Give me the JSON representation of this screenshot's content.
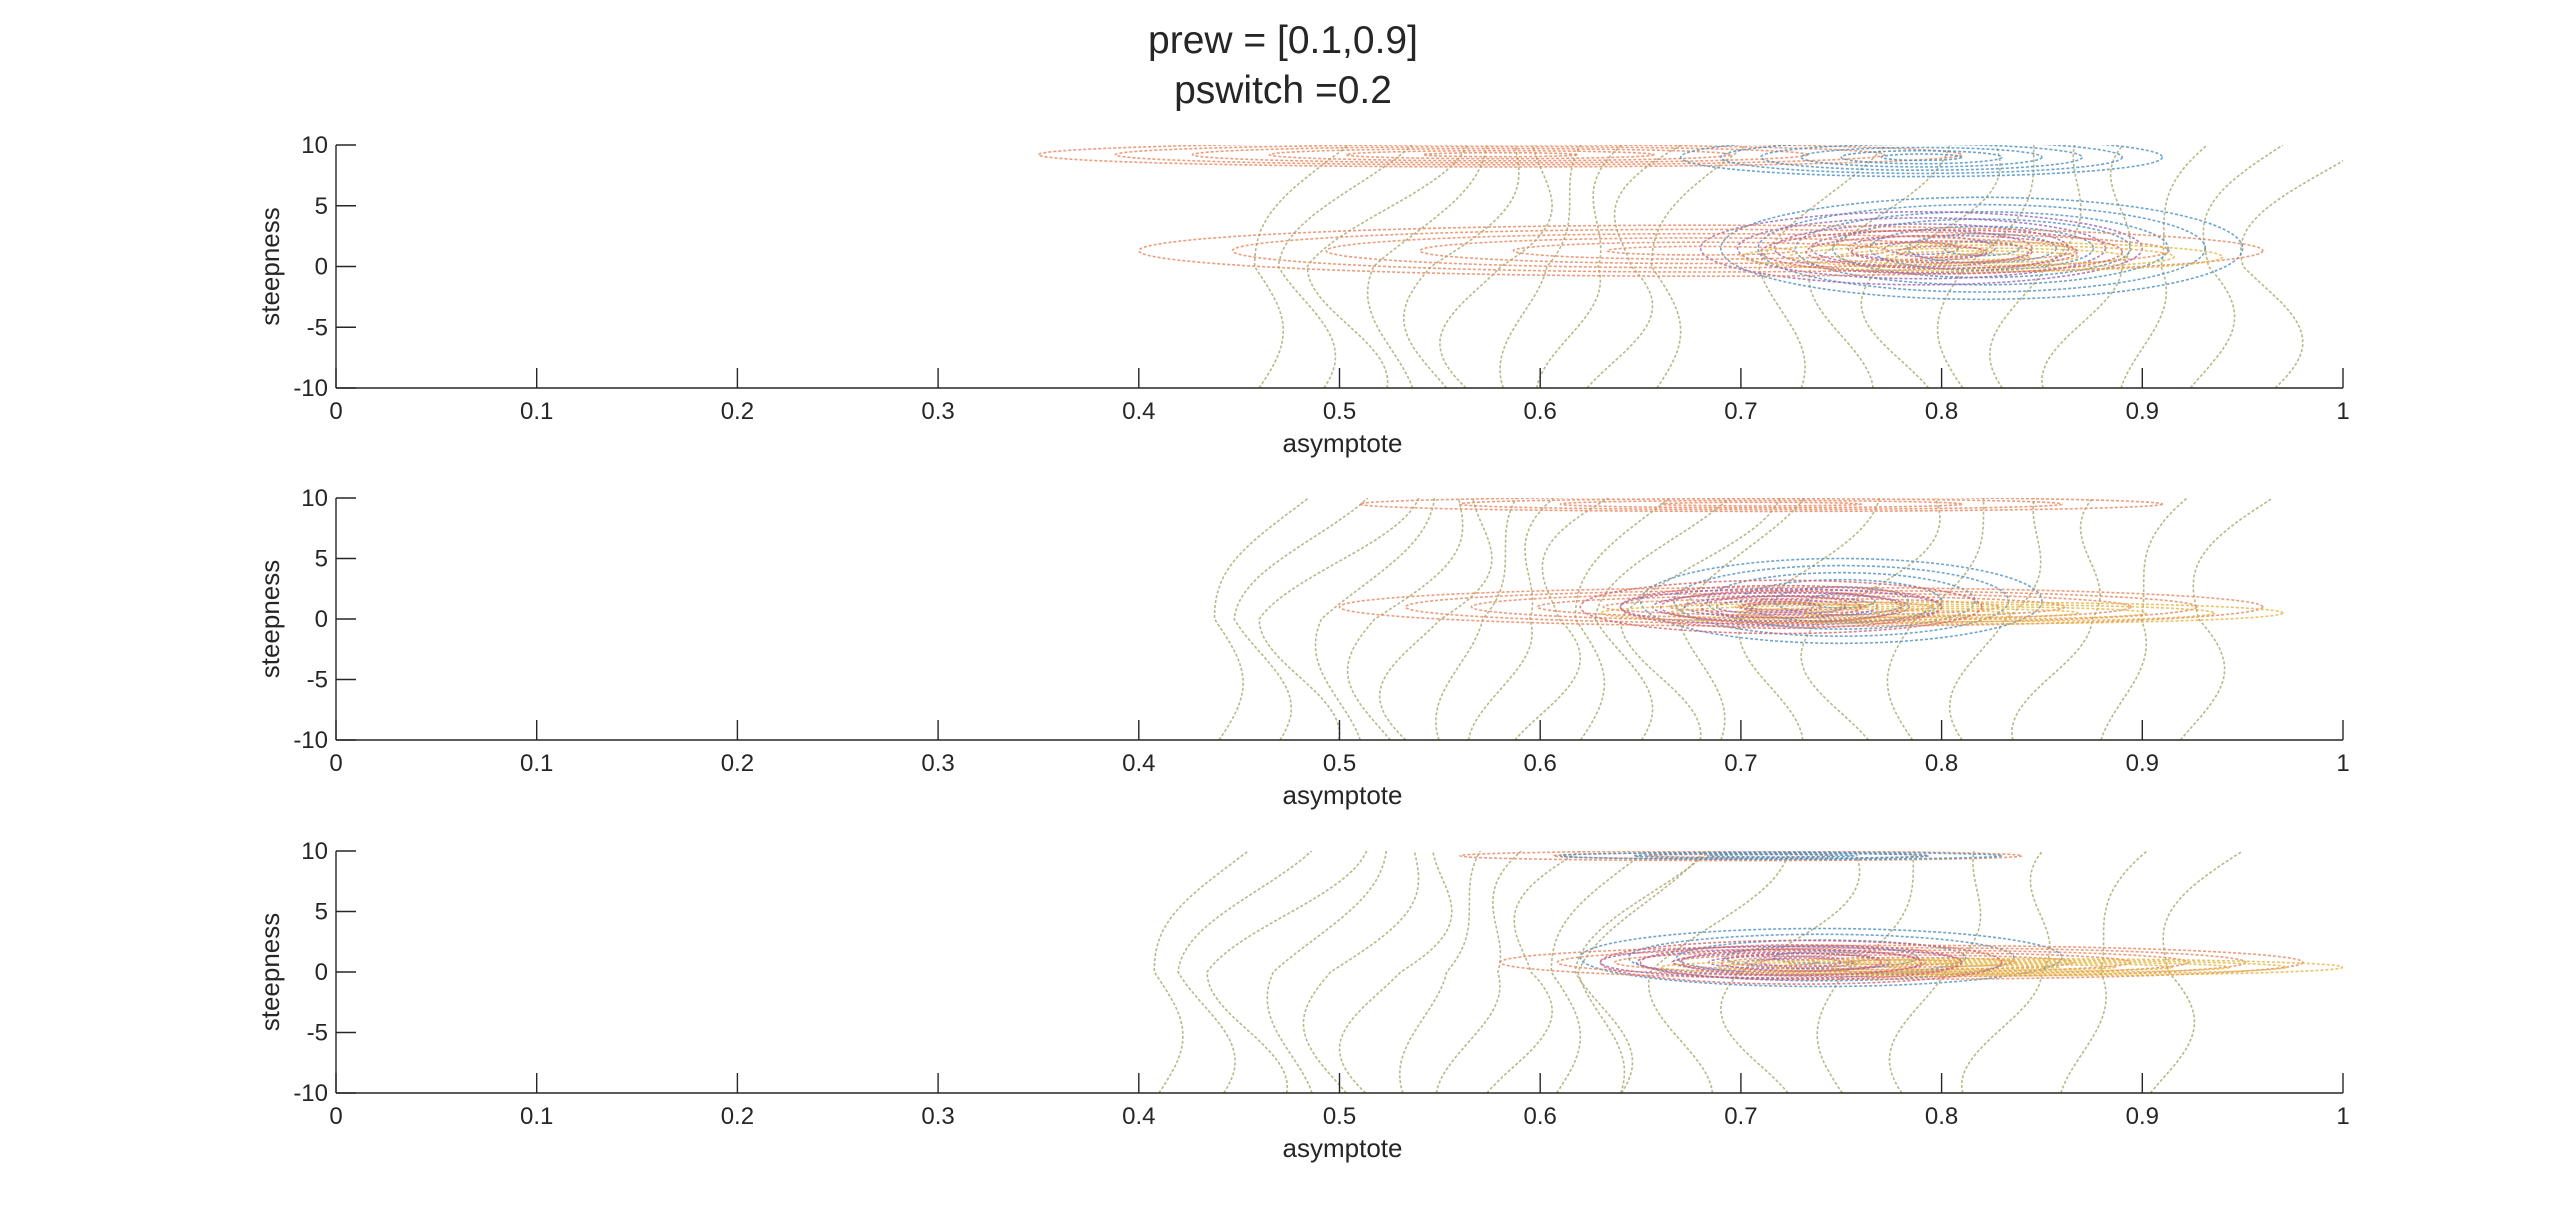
{
  "figure": {
    "title_line1": "prew = [0.1,0.9]",
    "title_line2": "pswitch =0.2"
  },
  "colors": {
    "orange": "#e8845b",
    "olive": "#a7a66b",
    "blue": "#4a8ec2",
    "purple": "#9b62b3",
    "yellow": "#e5b53e",
    "red": "#d95f6c"
  },
  "chart_data": [
    {
      "type": "contour",
      "xlabel": "asymptote",
      "ylabel": "steepness",
      "xlim": [
        0,
        1
      ],
      "ylim": [
        -10,
        10
      ],
      "xticks": [
        "0",
        "0.1",
        "0.2",
        "0.3",
        "0.4",
        "0.5",
        "0.6",
        "0.7",
        "0.8",
        "0.9",
        "1"
      ],
      "yticks": [
        "10",
        "5",
        "0",
        "-5",
        "-10"
      ],
      "grid": false,
      "ellipses": [
        {
          "cx": 0.58,
          "cy": 9.2,
          "rx": 0.23,
          "ry": 1.0,
          "levels": 6,
          "color": "orange"
        },
        {
          "cx": 0.79,
          "cy": 9.0,
          "rx": 0.12,
          "ry": 1.6,
          "levels": 6,
          "color": "blue"
        },
        {
          "cx": 0.82,
          "cy": 1.5,
          "rx": 0.13,
          "ry": 4.2,
          "levels": 7,
          "color": "blue"
        },
        {
          "cx": 0.79,
          "cy": 1.5,
          "rx": 0.11,
          "ry": 3.0,
          "levels": 6,
          "color": "purple"
        },
        {
          "cx": 0.68,
          "cy": 1.3,
          "rx": 0.28,
          "ry": 2.1,
          "levels": 6,
          "color": "orange"
        },
        {
          "cx": 0.82,
          "cy": 0.8,
          "rx": 0.12,
          "ry": 1.2,
          "levels": 5,
          "color": "yellow"
        },
        {
          "cx": 0.8,
          "cy": 1.2,
          "rx": 0.09,
          "ry": 1.8,
          "levels": 4,
          "color": "red"
        }
      ],
      "background_contours": [
        {
          "x0": 0.46,
          "spacing": 0.022,
          "count": 10,
          "color": "olive"
        },
        {
          "x0": 0.72,
          "spacing": 0.03,
          "count": 9,
          "color": "olive"
        }
      ]
    },
    {
      "type": "contour",
      "xlabel": "asymptote",
      "ylabel": "steepness",
      "xlim": [
        0,
        1
      ],
      "ylim": [
        -10,
        10
      ],
      "xticks": [
        "0",
        "0.1",
        "0.2",
        "0.3",
        "0.4",
        "0.5",
        "0.6",
        "0.7",
        "0.8",
        "0.9",
        "1"
      ],
      "yticks": [
        "10",
        "5",
        "0",
        "-5",
        "-10"
      ],
      "grid": false,
      "ellipses": [
        {
          "cx": 0.71,
          "cy": 9.5,
          "rx": 0.2,
          "ry": 0.6,
          "levels": 4,
          "color": "orange"
        },
        {
          "cx": 0.75,
          "cy": 1.5,
          "rx": 0.1,
          "ry": 3.5,
          "levels": 6,
          "color": "blue"
        },
        {
          "cx": 0.73,
          "cy": 1.0,
          "rx": 0.23,
          "ry": 1.6,
          "levels": 7,
          "color": "orange"
        },
        {
          "cx": 0.72,
          "cy": 1.0,
          "rx": 0.08,
          "ry": 1.5,
          "levels": 5,
          "color": "purple"
        },
        {
          "cx": 0.8,
          "cy": 0.5,
          "rx": 0.17,
          "ry": 0.9,
          "levels": 5,
          "color": "yellow"
        },
        {
          "cx": 0.72,
          "cy": 1.0,
          "rx": 0.1,
          "ry": 2.2,
          "levels": 5,
          "color": "red"
        }
      ],
      "background_contours": [
        {
          "x0": 0.44,
          "spacing": 0.02,
          "count": 12,
          "color": "olive"
        },
        {
          "x0": 0.68,
          "spacing": 0.035,
          "count": 8,
          "color": "olive"
        }
      ]
    },
    {
      "type": "contour",
      "xlabel": "asymptote",
      "ylabel": "steepness",
      "xlim": [
        0,
        1
      ],
      "ylim": [
        -10,
        10
      ],
      "xticks": [
        "0",
        "0.1",
        "0.2",
        "0.3",
        "0.4",
        "0.5",
        "0.6",
        "0.7",
        "0.8",
        "0.9",
        "1"
      ],
      "yticks": [
        "10",
        "5",
        "0",
        "-5",
        "-10"
      ],
      "grid": false,
      "ellipses": [
        {
          "cx": 0.7,
          "cy": 9.6,
          "rx": 0.14,
          "ry": 0.4,
          "levels": 3,
          "color": "orange"
        },
        {
          "cx": 0.72,
          "cy": 9.6,
          "rx": 0.11,
          "ry": 0.3,
          "levels": 3,
          "color": "blue"
        },
        {
          "cx": 0.74,
          "cy": 1.2,
          "rx": 0.12,
          "ry": 2.4,
          "levels": 5,
          "color": "blue"
        },
        {
          "cx": 0.78,
          "cy": 0.8,
          "rx": 0.2,
          "ry": 1.4,
          "levels": 7,
          "color": "orange"
        },
        {
          "cx": 0.72,
          "cy": 0.8,
          "rx": 0.09,
          "ry": 1.3,
          "levels": 5,
          "color": "purple"
        },
        {
          "cx": 0.83,
          "cy": 0.4,
          "rx": 0.17,
          "ry": 0.7,
          "levels": 6,
          "color": "yellow"
        },
        {
          "cx": 0.73,
          "cy": 0.8,
          "rx": 0.1,
          "ry": 1.8,
          "levels": 5,
          "color": "red"
        }
      ],
      "background_contours": [
        {
          "x0": 0.41,
          "spacing": 0.022,
          "count": 11,
          "color": "olive"
        },
        {
          "x0": 0.63,
          "spacing": 0.04,
          "count": 8,
          "color": "olive"
        }
      ]
    }
  ]
}
